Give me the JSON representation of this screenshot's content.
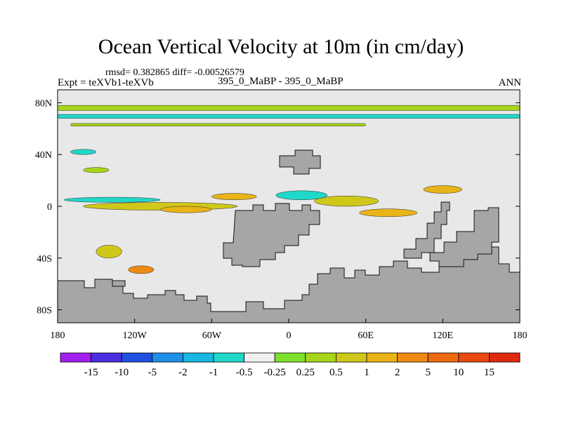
{
  "header": {
    "title": "Ocean Vertical Velocity at 10m (in cm/day)",
    "stats": "rmsd= 0.382865 diff= -0.00526579",
    "experiment": "Expt = teXVb1-teXVb",
    "case_label": "395_0_MaBP - 395_0_MaBP",
    "season": "ANN"
  },
  "colors": {
    "land": "#a6a6a6",
    "ocean_neutral": "#e8e8e8",
    "frame": "#000000"
  },
  "chart_data": {
    "type": "heatmap",
    "title": "Ocean Vertical Velocity at 10m (in cm/day)",
    "xlabel": "",
    "ylabel": "",
    "xlim": [
      -180,
      180
    ],
    "ylim": [
      -90,
      90
    ],
    "x_ticks": [
      {
        "value": -180,
        "label": "180"
      },
      {
        "value": -120,
        "label": "120W"
      },
      {
        "value": -60,
        "label": "60W"
      },
      {
        "value": 0,
        "label": "0"
      },
      {
        "value": 60,
        "label": "60E"
      },
      {
        "value": 120,
        "label": "120E"
      },
      {
        "value": 180,
        "label": "180"
      }
    ],
    "y_ticks": [
      {
        "value": 80,
        "label": "80N"
      },
      {
        "value": 40,
        "label": "40N"
      },
      {
        "value": 0,
        "label": "0"
      },
      {
        "value": -40,
        "label": "40S"
      },
      {
        "value": -80,
        "label": "80S"
      }
    ],
    "colorbar": {
      "labels": [
        "-15",
        "-10",
        "-5",
        "-2",
        "-1",
        "-0.5",
        "-0.25",
        "0.25",
        "0.5",
        "1",
        "2",
        "5",
        "10",
        "15"
      ],
      "colors": [
        "#a020f0",
        "#4b2ee0",
        "#2050e0",
        "#1e90e8",
        "#18b8e0",
        "#20d8c8",
        "#f0f0f0",
        "#7de02a",
        "#a8d41a",
        "#cfc81a",
        "#e8b417",
        "#ee8a12",
        "#ee6a10",
        "#e84a10",
        "#e02a10"
      ]
    },
    "features": [
      {
        "kind": "band",
        "category": "0.25",
        "lon": [
          -180,
          180
        ],
        "lat": [
          74,
          78
        ]
      },
      {
        "kind": "band",
        "category": "-0.5",
        "lon": [
          -180,
          180
        ],
        "lat": [
          68,
          71
        ]
      },
      {
        "kind": "band",
        "category": "0.25",
        "lon": [
          -170,
          60
        ],
        "lat": [
          62,
          64
        ]
      },
      {
        "kind": "blob",
        "category": "-0.5",
        "lon": [
          -175,
          -100
        ],
        "lat": [
          3,
          7
        ]
      },
      {
        "kind": "blob",
        "category": "0.5",
        "lon": [
          -160,
          -40
        ],
        "lat": [
          -3,
          3
        ]
      },
      {
        "kind": "blob",
        "category": "1",
        "lon": [
          -100,
          -60
        ],
        "lat": [
          -5,
          0
        ]
      },
      {
        "kind": "blob",
        "category": "1",
        "lon": [
          -60,
          -25
        ],
        "lat": [
          5,
          10
        ]
      },
      {
        "kind": "blob",
        "category": "0.5",
        "lon": [
          -150,
          -130
        ],
        "lat": [
          -40,
          -30
        ]
      },
      {
        "kind": "blob",
        "category": "2",
        "lon": [
          -125,
          -105
        ],
        "lat": [
          -52,
          -46
        ]
      },
      {
        "kind": "blob",
        "category": "0.5",
        "lon": [
          20,
          70
        ],
        "lat": [
          0,
          8
        ]
      },
      {
        "kind": "blob",
        "category": "1",
        "lon": [
          55,
          100
        ],
        "lat": [
          -8,
          -2
        ]
      },
      {
        "kind": "blob",
        "category": "-0.5",
        "lon": [
          -10,
          30
        ],
        "lat": [
          5,
          12
        ]
      },
      {
        "kind": "blob",
        "category": "1",
        "lon": [
          105,
          135
        ],
        "lat": [
          10,
          16
        ]
      },
      {
        "kind": "blob",
        "category": "-0.5",
        "lon": [
          -170,
          -150
        ],
        "lat": [
          40,
          44
        ]
      },
      {
        "kind": "blob",
        "category": "0.25",
        "lon": [
          -160,
          -140
        ],
        "lat": [
          26,
          30
        ]
      }
    ]
  }
}
